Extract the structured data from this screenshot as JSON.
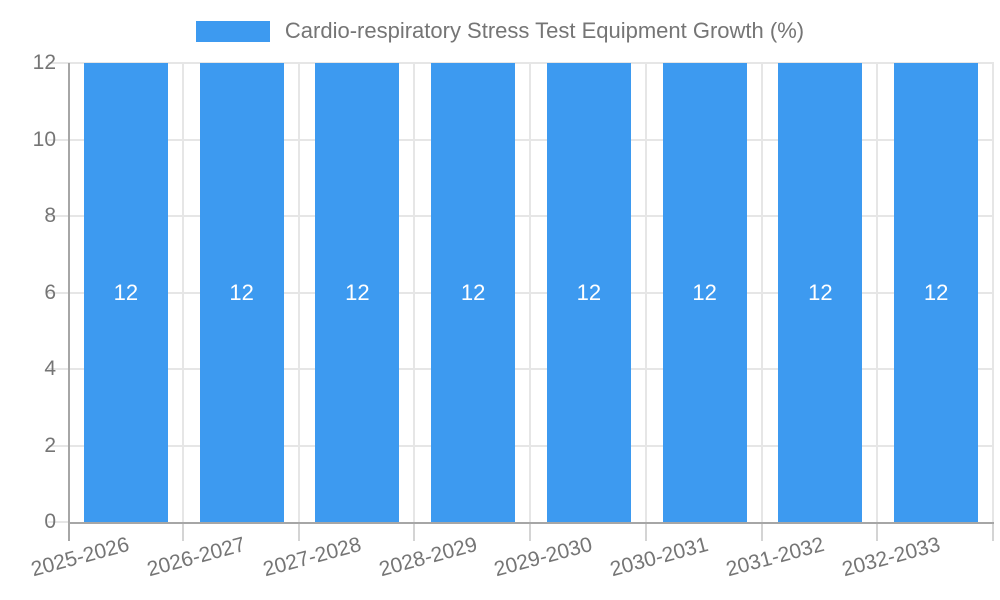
{
  "chart_data": {
    "type": "bar",
    "title": "Cardio-respiratory Stress Test Equipment Growth (%)",
    "categories": [
      "2025-2026",
      "2026-2027",
      "2027-2028",
      "2028-2029",
      "2029-2030",
      "2030-2031",
      "2031-2032",
      "2032-2033"
    ],
    "series": [
      {
        "name": "Cardio-respiratory Stress Test Equipment Growth (%)",
        "values": [
          12,
          12,
          12,
          12,
          12,
          12,
          12,
          12
        ]
      }
    ],
    "bar_value_labels": [
      "12",
      "12",
      "12",
      "12",
      "12",
      "12",
      "12",
      "12"
    ],
    "xlabel": "",
    "ylabel": "",
    "ylim": [
      0,
      12
    ],
    "yticks": [
      0,
      2,
      4,
      6,
      8,
      10,
      12
    ],
    "grid": true,
    "legend_position": "top",
    "colors": {
      "bar": "#3d9af0",
      "legend_text": "#757575",
      "axis_text": "#757575",
      "gridline": "#e6e6e6",
      "axis_line": "#a6a6a6",
      "tick": "#d4d4d4",
      "bar_label": "#ffffff",
      "background": "#ffffff"
    }
  }
}
